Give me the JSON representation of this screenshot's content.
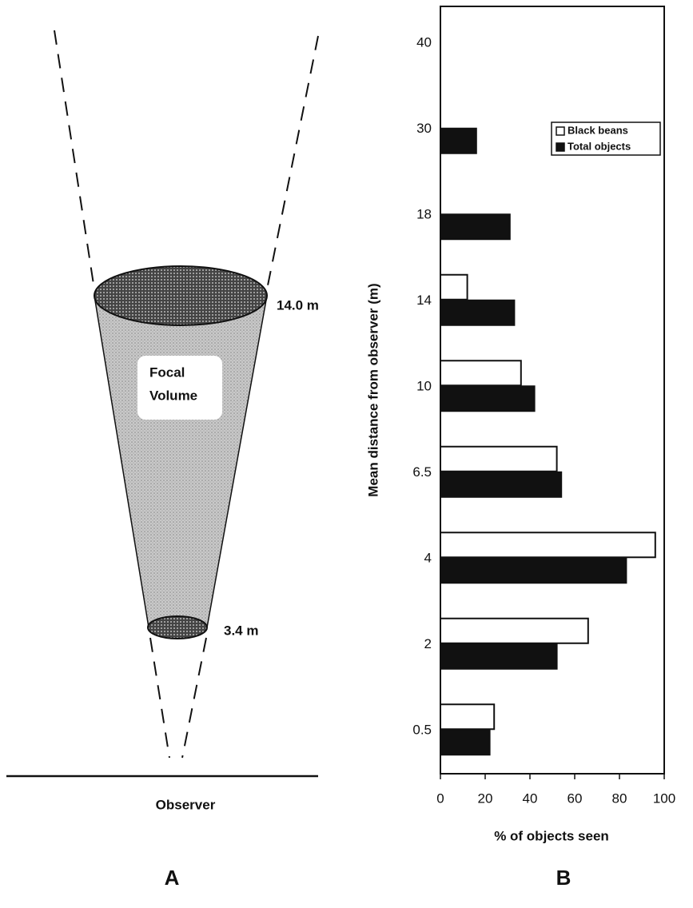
{
  "diagram": {
    "far_label": "14.0 m",
    "near_label": "3.4 m",
    "volume_label_1": "Focal",
    "volume_label_2": "Volume",
    "observer_label": "Observer",
    "panel_a": "A",
    "panel_b": "B"
  },
  "chart_data": {
    "type": "barh",
    "xlabel": "% of objects seen",
    "ylabel": "Mean distance from observer (m)",
    "categories": [
      "0.5",
      "2",
      "4",
      "6.5",
      "10",
      "14",
      "18",
      "30",
      "40"
    ],
    "series": [
      {
        "name": "Black beans",
        "color": "#ffffff",
        "values": [
          24,
          66,
          96,
          52,
          36,
          12,
          null,
          null,
          null
        ]
      },
      {
        "name": "Total objects",
        "color": "#111111",
        "values": [
          22,
          52,
          83,
          54,
          42,
          33,
          31,
          16,
          null
        ]
      }
    ],
    "xlim": [
      0,
      100
    ],
    "xticks": [
      0,
      20,
      40,
      60,
      80,
      100
    ],
    "legend": "upper right"
  }
}
